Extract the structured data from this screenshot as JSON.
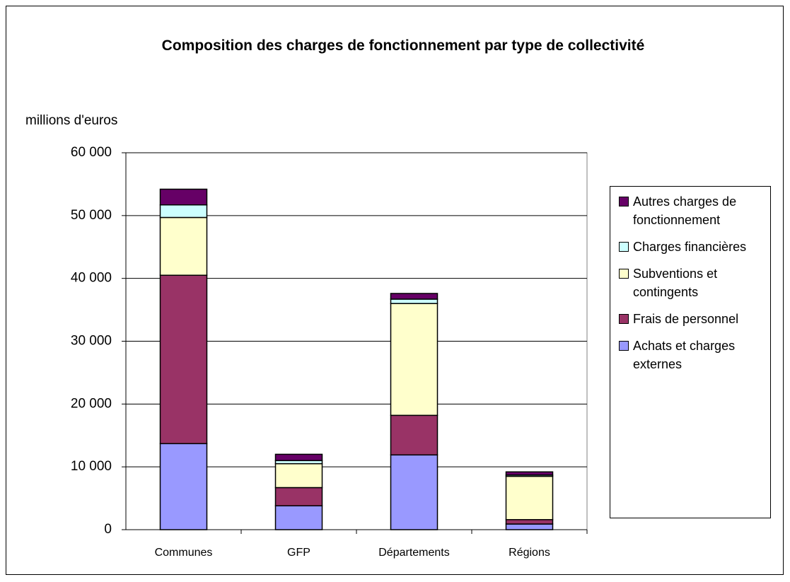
{
  "chart_data": {
    "type": "stacked_bar",
    "title": "Composition des charges de fonctionnement par type de collectivité",
    "y_label": "millions d'euros",
    "categories": [
      "Communes",
      "GFP",
      "Départements",
      "Régions"
    ],
    "series": [
      {
        "name": "Achats et charges externes",
        "color": "#9999ff",
        "values": [
          13700,
          3800,
          11900,
          900
        ]
      },
      {
        "name": "Frais de personnel",
        "color": "#993366",
        "values": [
          26800,
          2900,
          6300,
          700
        ]
      },
      {
        "name": "Subventions et contingents",
        "color": "#ffffcc",
        "values": [
          9200,
          3800,
          17800,
          6900
        ]
      },
      {
        "name": "Charges financières",
        "color": "#ccffff",
        "values": [
          2000,
          500,
          700,
          200
        ]
      },
      {
        "name": "Autres charges de fonctionnement",
        "color": "#660066",
        "values": [
          2500,
          1000,
          900,
          500
        ]
      }
    ],
    "ylim": [
      0,
      60000
    ],
    "yticks": [
      0,
      {
        "value": 10000,
        "label": "10 000"
      },
      {
        "value": 20000,
        "label": "20 000"
      },
      {
        "value": 30000,
        "label": "30 000"
      },
      {
        "value": 40000,
        "label": "40 000"
      },
      {
        "value": 50000,
        "label": "50 000"
      },
      {
        "value": 60000,
        "label": "60 000"
      }
    ],
    "grid": true,
    "legend": "right"
  }
}
